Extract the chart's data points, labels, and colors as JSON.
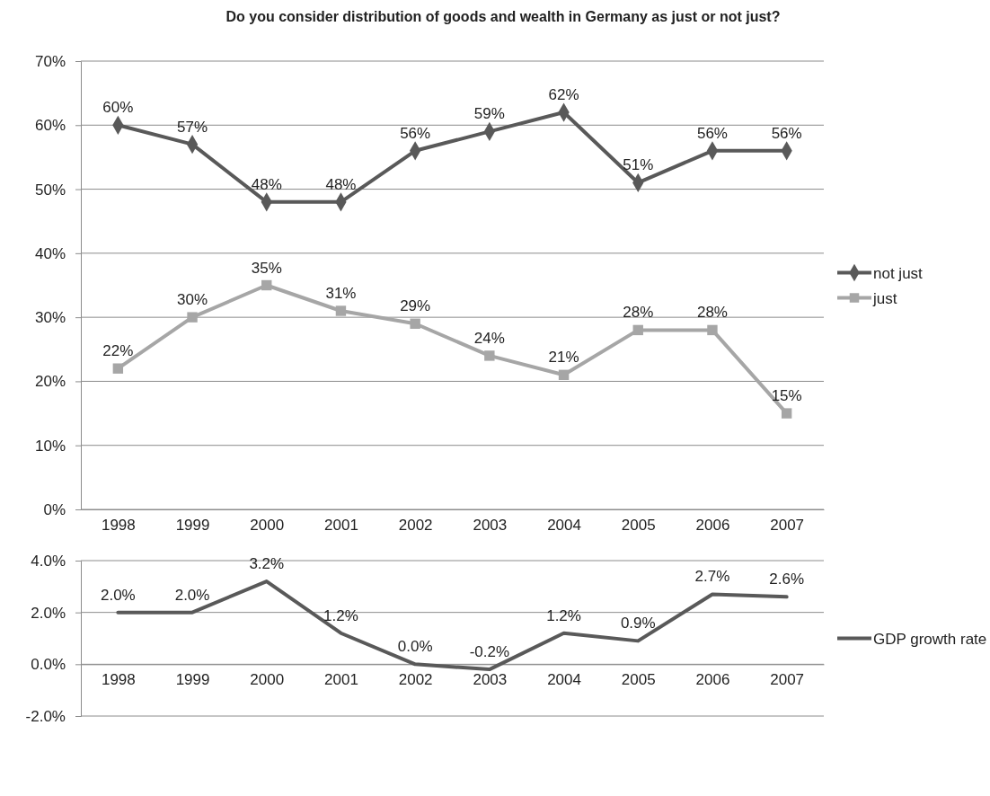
{
  "chart_data": [
    {
      "type": "line",
      "title": "Do you consider distribution of goods and wealth in Germany as just or not just?",
      "categories": [
        "1998",
        "1999",
        "2000",
        "2001",
        "2002",
        "2003",
        "2004",
        "2005",
        "2006",
        "2007"
      ],
      "ylim": [
        0,
        70
      ],
      "yticks": [
        {
          "value": 0,
          "label": "0%"
        },
        {
          "value": 10,
          "label": "10%"
        },
        {
          "value": 20,
          "label": "20%"
        },
        {
          "value": 30,
          "label": "30%"
        },
        {
          "value": 40,
          "label": "40%"
        },
        {
          "value": 50,
          "label": "50%"
        },
        {
          "value": 60,
          "label": "60%"
        },
        {
          "value": 70,
          "label": "70%"
        }
      ],
      "grid": "y",
      "legend": "right",
      "series": [
        {
          "name": "not just",
          "color": "#595959",
          "marker": "diamond",
          "values": [
            60,
            57,
            48,
            48,
            56,
            59,
            62,
            51,
            56,
            56
          ],
          "value_labels": [
            "60%",
            "57%",
            "48%",
            "48%",
            "56%",
            "59%",
            "62%",
            "51%",
            "56%",
            "56%"
          ]
        },
        {
          "name": "just",
          "color": "#a6a6a6",
          "marker": "square",
          "values": [
            22,
            30,
            35,
            31,
            29,
            24,
            21,
            28,
            28,
            15
          ],
          "value_labels": [
            "22%",
            "30%",
            "35%",
            "31%",
            "29%",
            "24%",
            "21%",
            "28%",
            "28%",
            "15%"
          ]
        }
      ]
    },
    {
      "type": "line",
      "categories": [
        "1998",
        "1999",
        "2000",
        "2001",
        "2002",
        "2003",
        "2004",
        "2005",
        "2006",
        "2007"
      ],
      "ylim": [
        -2,
        4
      ],
      "yticks": [
        {
          "value": -2,
          "label": "-2.0%"
        },
        {
          "value": 0,
          "label": "0.0%"
        },
        {
          "value": 2,
          "label": "2.0%"
        },
        {
          "value": 4,
          "label": "4.0%"
        }
      ],
      "grid": "y",
      "legend": "right",
      "series": [
        {
          "name": "GDP growth rate",
          "color": "#595959",
          "marker": "none",
          "values": [
            2.0,
            2.0,
            3.2,
            1.2,
            0.0,
            -0.2,
            1.2,
            0.9,
            2.7,
            2.6
          ],
          "value_labels": [
            "2.0%",
            "2.0%",
            "3.2%",
            "1.2%",
            "0.0%",
            "-0.2%",
            "1.2%",
            "0.9%",
            "2.7%",
            "2.6%"
          ]
        }
      ]
    }
  ]
}
